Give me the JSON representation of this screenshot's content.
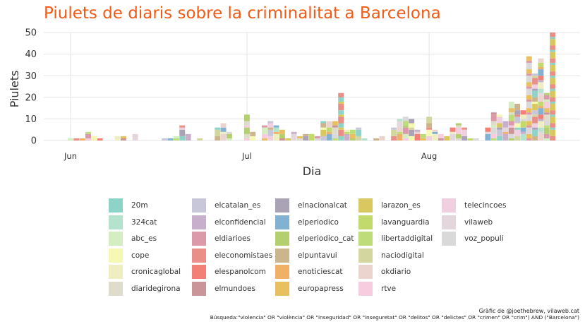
{
  "chart_data": {
    "type": "bar",
    "stacked": true,
    "title": "Piulets de diaris sobre la criminalitat a Barcelona",
    "xlabel": "Dia",
    "ylabel": "Piulets",
    "ylim": [
      0,
      52
    ],
    "yticks": [
      0,
      10,
      20,
      30,
      40,
      50
    ],
    "xticks": [
      {
        "day": 0,
        "label": "Jun"
      },
      {
        "day": 30,
        "label": "Jul"
      },
      {
        "day": 61,
        "label": "Aug"
      }
    ],
    "x_unit": "day index from 1 June",
    "legend_position": "bottom",
    "totals": [
      {
        "day": 0,
        "value": 1
      },
      {
        "day": 1,
        "value": 1
      },
      {
        "day": 2,
        "value": 1
      },
      {
        "day": 3,
        "value": 4
      },
      {
        "day": 4,
        "value": 2
      },
      {
        "day": 5,
        "value": 1
      },
      {
        "day": 8,
        "value": 2
      },
      {
        "day": 9,
        "value": 2
      },
      {
        "day": 11,
        "value": 3
      },
      {
        "day": 16,
        "value": 1
      },
      {
        "day": 17,
        "value": 1
      },
      {
        "day": 18,
        "value": 2
      },
      {
        "day": 19,
        "value": 7
      },
      {
        "day": 20,
        "value": 3
      },
      {
        "day": 22,
        "value": 1
      },
      {
        "day": 25,
        "value": 6
      },
      {
        "day": 26,
        "value": 8
      },
      {
        "day": 27,
        "value": 4
      },
      {
        "day": 30,
        "value": 12
      },
      {
        "day": 31,
        "value": 4
      },
      {
        "day": 33,
        "value": 7
      },
      {
        "day": 34,
        "value": 9
      },
      {
        "day": 35,
        "value": 7
      },
      {
        "day": 36,
        "value": 5
      },
      {
        "day": 37,
        "value": 1
      },
      {
        "day": 38,
        "value": 4
      },
      {
        "day": 39,
        "value": 2
      },
      {
        "day": 40,
        "value": 3
      },
      {
        "day": 41,
        "value": 3
      },
      {
        "day": 42,
        "value": 2
      },
      {
        "day": 43,
        "value": 9
      },
      {
        "day": 44,
        "value": 9
      },
      {
        "day": 45,
        "value": 9
      },
      {
        "day": 46,
        "value": 22
      },
      {
        "day": 47,
        "value": 5
      },
      {
        "day": 48,
        "value": 5
      },
      {
        "day": 49,
        "value": 6
      },
      {
        "day": 50,
        "value": 1
      },
      {
        "day": 52,
        "value": 1
      },
      {
        "day": 53,
        "value": 2
      },
      {
        "day": 55,
        "value": 6
      },
      {
        "day": 56,
        "value": 10
      },
      {
        "day": 57,
        "value": 11
      },
      {
        "day": 58,
        "value": 10
      },
      {
        "day": 59,
        "value": 5
      },
      {
        "day": 60,
        "value": 3
      },
      {
        "day": 61,
        "value": 11
      },
      {
        "day": 62,
        "value": 5
      },
      {
        "day": 63,
        "value": 3
      },
      {
        "day": 64,
        "value": 2
      },
      {
        "day": 65,
        "value": 6
      },
      {
        "day": 66,
        "value": 8
      },
      {
        "day": 67,
        "value": 6
      },
      {
        "day": 68,
        "value": 1
      },
      {
        "day": 69,
        "value": 1
      },
      {
        "day": 71,
        "value": 6
      },
      {
        "day": 72,
        "value": 13
      },
      {
        "day": 73,
        "value": 12
      },
      {
        "day": 74,
        "value": 9
      },
      {
        "day": 75,
        "value": 18
      },
      {
        "day": 76,
        "value": 17
      },
      {
        "day": 77,
        "value": 14
      },
      {
        "day": 78,
        "value": 39
      },
      {
        "day": 79,
        "value": 31
      },
      {
        "day": 80,
        "value": 38
      },
      {
        "day": 81,
        "value": 22
      },
      {
        "day": 82,
        "value": 50
      }
    ],
    "series": [
      "20m",
      "324cat",
      "abc_es",
      "cope",
      "cronicaglobal",
      "diaridegirona",
      "elcatalan_es",
      "elconfidencial",
      "eldiarioes",
      "eleconomistaes",
      "elespanolcom",
      "elmundoes",
      "elnacionalcat",
      "elperiodico",
      "elperiodico_cat",
      "elpuntavui",
      "enoticiescat",
      "europapress",
      "larazon_es",
      "lavanguardia",
      "libertaddigital",
      "naciodigital",
      "okdiario",
      "rtve",
      "telecincoes",
      "vilaweb",
      "voz_populi"
    ],
    "colors": [
      "#8dd3c7",
      "#b3e2cd",
      "#d4eec2",
      "#f5f9b4",
      "#eeeec1",
      "#e0dccb",
      "#c8c7d9",
      "#c8b0cc",
      "#dc9aa8",
      "#ea8f88",
      "#f38076",
      "#c99598",
      "#a9a3b5",
      "#82b1d2",
      "#b4d06e",
      "#ccb48c",
      "#f0b068",
      "#e8c061",
      "#d9c860",
      "#c2da6c",
      "#bedd7a",
      "#d4d6a0",
      "#ebd4cd",
      "#f8ccdf",
      "#efcfe0",
      "#e3d7dd",
      "#d9d9d9"
    ]
  },
  "credits": {
    "line1": "Gràfic de @joethebrew, vilaweb.cat",
    "line2": "Búsqueda:\"violencia\" OR \"violència\" OR \"inseguridad\" OR \"inseguretat\" OR \"delitos\" OR \"delictes\" OR \"crimen\" OR \"crim\") AND (\"Barcelona\")"
  }
}
